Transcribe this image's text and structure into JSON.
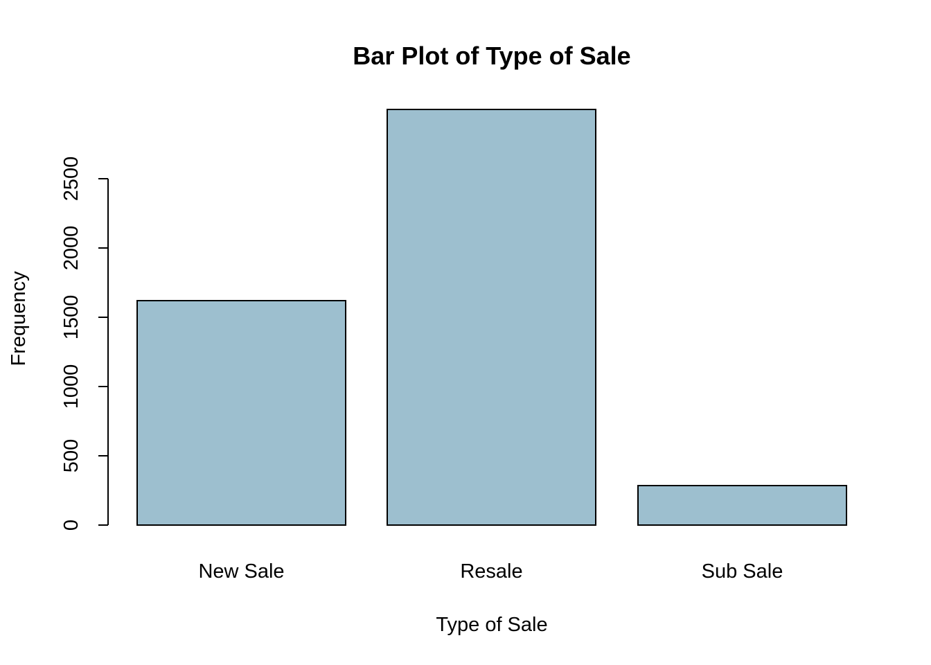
{
  "chart_data": {
    "type": "bar",
    "title": "Bar Plot of Type of Sale",
    "xlabel": "Type of Sale",
    "ylabel": "Frequency",
    "categories": [
      "New Sale",
      "Resale",
      "Sub Sale"
    ],
    "values": [
      1620,
      3000,
      285
    ],
    "yticks": [
      0,
      500,
      1000,
      1500,
      2000,
      2500
    ],
    "ylim": [
      0,
      3000
    ],
    "grid": false,
    "bar_color": "#9dbfcf",
    "border_color": "#000000"
  }
}
